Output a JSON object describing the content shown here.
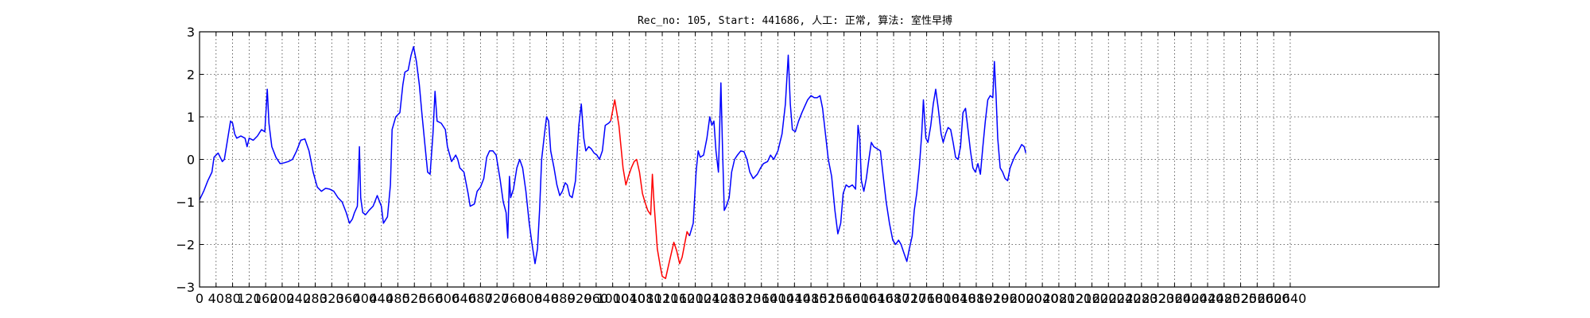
{
  "chart_data": {
    "type": "line",
    "title": "Rec_no: 105, Start: 441686, 人工: 正常, 算法: 室性早搏",
    "xlabel": "",
    "ylabel": "",
    "xlim": [
      0,
      3000
    ],
    "ylim": [
      -3,
      3
    ],
    "grid": true,
    "x_ticks": [
      0,
      40,
      80,
      120,
      160,
      200,
      240,
      280,
      320,
      360,
      400,
      440,
      480,
      520,
      560,
      600,
      640,
      680,
      720,
      760,
      800,
      840,
      880,
      920,
      960,
      1000,
      1040,
      1080,
      1120,
      1160,
      1200,
      1240,
      1280,
      1320,
      1360,
      1400,
      1440,
      1480,
      1520,
      1560,
      1600,
      1640,
      1680,
      1720,
      1760,
      1800,
      1840,
      1880,
      1920,
      1960,
      2000,
      2040,
      2080,
      2120,
      2160,
      2200,
      2240,
      2280,
      2320,
      2360,
      2400,
      2440,
      2480,
      2520,
      2560,
      2600,
      2640
    ],
    "y_ticks": [
      -3,
      -2,
      -1,
      0,
      1,
      2,
      3
    ],
    "x_tick_labels": [
      "0",
      "40",
      "80",
      "120",
      "160",
      "200",
      "240",
      "280",
      "320",
      "360",
      "400",
      "440",
      "480",
      "520",
      "560",
      "600",
      "640",
      "680",
      "720",
      "760",
      "800",
      "840",
      "880",
      "920",
      "960",
      "1000",
      "1040",
      "1080",
      "1120",
      "1160",
      "1200",
      "1240",
      "1280",
      "1320",
      "1360",
      "1400",
      "1440",
      "1480",
      "1520",
      "1560",
      "1600",
      "1640",
      "1680",
      "1720",
      "1760",
      "1800",
      "1840",
      "1880",
      "1920",
      "1960",
      "2000",
      "2040",
      "2080",
      "2120",
      "2160",
      "2200",
      "2240",
      "2280",
      "2320",
      "2360",
      "2400",
      "2440",
      "2480",
      "2520",
      "2560",
      "2600",
      "2640"
    ],
    "y_tick_labels": [
      "−3",
      "−2",
      "−1",
      "0",
      "1",
      "2",
      "3"
    ],
    "series": [
      {
        "color": "#0000ff",
        "points": [
          [
            0,
            -0.95
          ],
          [
            10,
            -0.75
          ],
          [
            20,
            -0.5
          ],
          [
            30,
            -0.3
          ],
          [
            35,
            0.05
          ],
          [
            40,
            0.1
          ],
          [
            45,
            0.15
          ],
          [
            50,
            0.05
          ],
          [
            55,
            -0.05
          ],
          [
            60,
            0.0
          ],
          [
            65,
            0.3
          ],
          [
            70,
            0.6
          ],
          [
            75,
            0.9
          ],
          [
            80,
            0.85
          ],
          [
            85,
            0.6
          ],
          [
            90,
            0.5
          ],
          [
            100,
            0.55
          ],
          [
            110,
            0.5
          ],
          [
            115,
            0.3
          ],
          [
            120,
            0.5
          ],
          [
            130,
            0.45
          ],
          [
            140,
            0.55
          ],
          [
            150,
            0.7
          ],
          [
            158,
            0.65
          ],
          [
            164,
            1.65
          ],
          [
            168,
            0.85
          ],
          [
            175,
            0.3
          ],
          [
            185,
            0.05
          ],
          [
            195,
            -0.1
          ],
          [
            205,
            -0.08
          ],
          [
            215,
            -0.05
          ],
          [
            225,
            0.0
          ],
          [
            235,
            0.2
          ],
          [
            245,
            0.45
          ],
          [
            255,
            0.48
          ],
          [
            265,
            0.2
          ],
          [
            275,
            -0.3
          ],
          [
            285,
            -0.65
          ],
          [
            295,
            -0.75
          ],
          [
            305,
            -0.68
          ],
          [
            315,
            -0.7
          ],
          [
            325,
            -0.75
          ],
          [
            335,
            -0.9
          ],
          [
            345,
            -1.0
          ],
          [
            355,
            -1.25
          ],
          [
            363,
            -1.5
          ],
          [
            370,
            -1.4
          ],
          [
            375,
            -1.25
          ],
          [
            382,
            -1.1
          ],
          [
            387,
            0.3
          ],
          [
            390,
            -0.9
          ],
          [
            395,
            -1.25
          ],
          [
            402,
            -1.3
          ],
          [
            410,
            -1.2
          ],
          [
            420,
            -1.1
          ],
          [
            430,
            -0.85
          ],
          [
            440,
            -1.1
          ],
          [
            445,
            -1.5
          ],
          [
            455,
            -1.35
          ],
          [
            462,
            -0.6
          ],
          [
            466,
            0.7
          ],
          [
            475,
            1.0
          ],
          [
            485,
            1.1
          ],
          [
            492,
            1.75
          ],
          [
            497,
            2.05
          ],
          [
            505,
            2.1
          ],
          [
            512,
            2.45
          ],
          [
            518,
            2.65
          ],
          [
            525,
            2.3
          ],
          [
            532,
            1.75
          ],
          [
            538,
            1.1
          ],
          [
            545,
            0.4
          ],
          [
            552,
            -0.3
          ],
          [
            558,
            -0.35
          ],
          [
            565,
            0.6
          ],
          [
            570,
            1.6
          ],
          [
            575,
            0.9
          ],
          [
            585,
            0.85
          ],
          [
            595,
            0.7
          ],
          [
            600,
            0.3
          ],
          [
            610,
            -0.05
          ],
          [
            620,
            0.1
          ],
          [
            625,
            0.0
          ],
          [
            630,
            -0.2
          ],
          [
            640,
            -0.3
          ],
          [
            650,
            -0.8
          ],
          [
            655,
            -1.1
          ],
          [
            665,
            -1.05
          ],
          [
            672,
            -0.75
          ],
          [
            680,
            -0.65
          ],
          [
            688,
            -0.45
          ],
          [
            695,
            0.05
          ],
          [
            702,
            0.2
          ],
          [
            710,
            0.2
          ],
          [
            718,
            0.1
          ],
          [
            728,
            -0.5
          ],
          [
            735,
            -1.0
          ],
          [
            742,
            -1.25
          ],
          [
            746,
            -1.85
          ],
          [
            750,
            -0.4
          ],
          [
            753,
            -0.9
          ],
          [
            760,
            -0.7
          ],
          [
            768,
            -0.2
          ],
          [
            775,
            0.0
          ],
          [
            782,
            -0.2
          ],
          [
            790,
            -0.75
          ],
          [
            798,
            -1.5
          ],
          [
            805,
            -2.0
          ],
          [
            812,
            -2.45
          ],
          [
            818,
            -2.1
          ],
          [
            823,
            -1.2
          ],
          [
            828,
            0.0
          ],
          [
            835,
            0.6
          ],
          [
            840,
            1.0
          ],
          [
            845,
            0.9
          ],
          [
            850,
            0.2
          ],
          [
            858,
            -0.2
          ],
          [
            865,
            -0.6
          ],
          [
            872,
            -0.85
          ],
          [
            878,
            -0.75
          ],
          [
            885,
            -0.55
          ],
          [
            890,
            -0.6
          ],
          [
            896,
            -0.85
          ],
          [
            902,
            -0.9
          ],
          [
            910,
            -0.5
          ],
          [
            918,
            0.8
          ],
          [
            924,
            1.3
          ],
          [
            930,
            0.5
          ],
          [
            935,
            0.2
          ],
          [
            942,
            0.3
          ],
          [
            948,
            0.25
          ],
          [
            955,
            0.15
          ],
          [
            962,
            0.1
          ],
          [
            968,
            0.0
          ],
          [
            975,
            0.2
          ],
          [
            982,
            0.8
          ],
          [
            990,
            0.85
          ],
          [
            995,
            0.9
          ]
        ]
      },
      {
        "color": "#ff0000",
        "points": [
          [
            995,
            0.9
          ],
          [
            1000,
            1.15
          ],
          [
            1005,
            1.4
          ],
          [
            1010,
            1.1
          ],
          [
            1015,
            0.8
          ],
          [
            1020,
            0.3
          ],
          [
            1025,
            -0.2
          ],
          [
            1032,
            -0.6
          ],
          [
            1038,
            -0.4
          ],
          [
            1045,
            -0.2
          ],
          [
            1052,
            -0.05
          ],
          [
            1058,
            0.0
          ],
          [
            1065,
            -0.3
          ],
          [
            1072,
            -0.8
          ],
          [
            1078,
            -1.0
          ],
          [
            1085,
            -1.2
          ],
          [
            1092,
            -1.3
          ],
          [
            1096,
            -0.35
          ],
          [
            1100,
            -1.0
          ],
          [
            1108,
            -2.1
          ],
          [
            1115,
            -2.5
          ],
          [
            1120,
            -2.75
          ],
          [
            1128,
            -2.8
          ],
          [
            1135,
            -2.5
          ],
          [
            1142,
            -2.2
          ],
          [
            1148,
            -1.95
          ],
          [
            1155,
            -2.15
          ],
          [
            1162,
            -2.45
          ],
          [
            1168,
            -2.3
          ],
          [
            1175,
            -1.95
          ],
          [
            1180,
            -1.7
          ],
          [
            1186,
            -1.8
          ]
        ]
      },
      {
        "color": "#0000ff",
        "points": [
          [
            1186,
            -1.8
          ],
          [
            1195,
            -1.5
          ],
          [
            1202,
            -0.3
          ],
          [
            1207,
            0.2
          ],
          [
            1212,
            0.05
          ],
          [
            1220,
            0.1
          ],
          [
            1228,
            0.5
          ],
          [
            1235,
            1.0
          ],
          [
            1240,
            0.8
          ],
          [
            1245,
            0.9
          ],
          [
            1250,
            0.2
          ],
          [
            1256,
            -0.3
          ],
          [
            1262,
            1.8
          ],
          [
            1266,
            0.2
          ],
          [
            1270,
            -1.2
          ],
          [
            1275,
            -1.1
          ],
          [
            1282,
            -0.9
          ],
          [
            1288,
            -0.3
          ],
          [
            1295,
            0.0
          ],
          [
            1302,
            0.1
          ],
          [
            1310,
            0.2
          ],
          [
            1318,
            0.18
          ],
          [
            1325,
            0.0
          ],
          [
            1332,
            -0.3
          ],
          [
            1340,
            -0.45
          ],
          [
            1350,
            -0.35
          ],
          [
            1358,
            -0.2
          ],
          [
            1365,
            -0.1
          ],
          [
            1375,
            -0.05
          ],
          [
            1382,
            0.1
          ],
          [
            1390,
            0.0
          ],
          [
            1400,
            0.2
          ],
          [
            1410,
            0.6
          ],
          [
            1418,
            1.3
          ],
          [
            1425,
            2.45
          ],
          [
            1430,
            1.3
          ],
          [
            1435,
            0.7
          ],
          [
            1442,
            0.65
          ],
          [
            1450,
            0.9
          ],
          [
            1458,
            1.1
          ],
          [
            1465,
            1.25
          ],
          [
            1472,
            1.4
          ],
          [
            1480,
            1.5
          ],
          [
            1488,
            1.45
          ],
          [
            1495,
            1.45
          ],
          [
            1502,
            1.5
          ],
          [
            1508,
            1.2
          ],
          [
            1515,
            0.6
          ],
          [
            1522,
            0.0
          ],
          [
            1530,
            -0.4
          ],
          [
            1538,
            -1.2
          ],
          [
            1545,
            -1.75
          ],
          [
            1552,
            -1.5
          ],
          [
            1558,
            -0.8
          ],
          [
            1565,
            -0.6
          ],
          [
            1572,
            -0.65
          ],
          [
            1580,
            -0.6
          ],
          [
            1588,
            -0.7
          ],
          [
            1594,
            0.8
          ],
          [
            1598,
            0.5
          ],
          [
            1602,
            -0.5
          ],
          [
            1608,
            -0.75
          ],
          [
            1614,
            -0.45
          ],
          [
            1620,
            0.0
          ],
          [
            1626,
            0.4
          ],
          [
            1632,
            0.3
          ],
          [
            1640,
            0.25
          ],
          [
            1648,
            0.2
          ],
          [
            1655,
            -0.4
          ],
          [
            1662,
            -1.0
          ],
          [
            1670,
            -1.5
          ],
          [
            1678,
            -1.9
          ],
          [
            1685,
            -2.0
          ],
          [
            1692,
            -1.9
          ],
          [
            1698,
            -2.0
          ],
          [
            1705,
            -2.2
          ],
          [
            1712,
            -2.4
          ],
          [
            1718,
            -2.1
          ],
          [
            1725,
            -1.8
          ],
          [
            1730,
            -1.2
          ],
          [
            1736,
            -0.8
          ],
          [
            1742,
            -0.2
          ],
          [
            1748,
            0.6
          ],
          [
            1752,
            1.4
          ],
          [
            1758,
            0.5
          ],
          [
            1763,
            0.4
          ],
          [
            1770,
            0.8
          ],
          [
            1776,
            1.3
          ],
          [
            1782,
            1.65
          ],
          [
            1788,
            1.2
          ],
          [
            1795,
            0.6
          ],
          [
            1800,
            0.4
          ],
          [
            1806,
            0.6
          ],
          [
            1812,
            0.75
          ],
          [
            1818,
            0.7
          ],
          [
            1824,
            0.4
          ],
          [
            1830,
            0.05
          ],
          [
            1836,
            0.0
          ],
          [
            1842,
            0.3
          ],
          [
            1848,
            1.1
          ],
          [
            1854,
            1.2
          ],
          [
            1860,
            0.7
          ],
          [
            1866,
            0.2
          ],
          [
            1872,
            -0.2
          ],
          [
            1878,
            -0.3
          ],
          [
            1884,
            -0.1
          ],
          [
            1890,
            -0.35
          ],
          [
            1896,
            0.3
          ],
          [
            1902,
            0.9
          ],
          [
            1908,
            1.4
          ],
          [
            1914,
            1.5
          ],
          [
            1920,
            1.45
          ],
          [
            1924,
            2.3
          ],
          [
            1928,
            1.5
          ],
          [
            1932,
            0.5
          ],
          [
            1938,
            -0.2
          ],
          [
            1944,
            -0.3
          ],
          [
            1950,
            -0.45
          ],
          [
            1956,
            -0.5
          ],
          [
            1962,
            -0.2
          ],
          [
            1968,
            -0.05
          ],
          [
            1975,
            0.1
          ],
          [
            1982,
            0.2
          ],
          [
            1990,
            0.35
          ],
          [
            1996,
            0.3
          ],
          [
            2000,
            0.15
          ]
        ]
      }
    ]
  }
}
